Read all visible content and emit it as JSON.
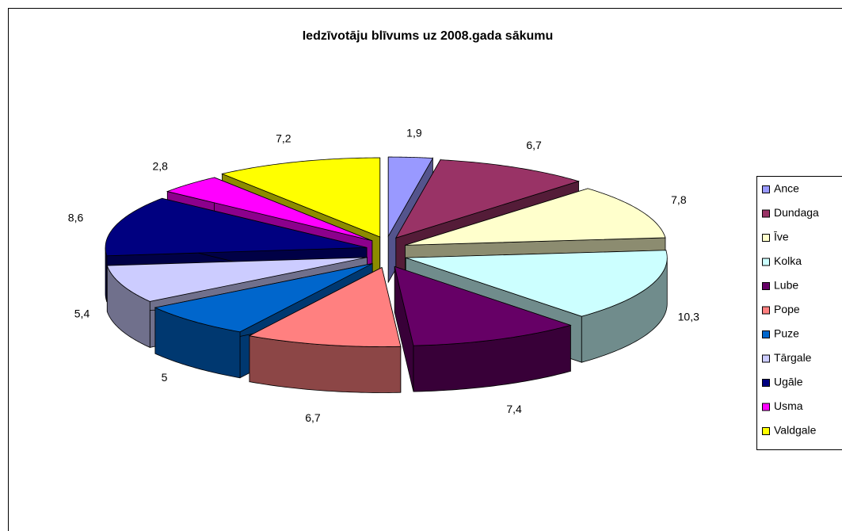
{
  "chart_data": {
    "type": "pie",
    "title": "Iedzīvotāju blīvums uz 2008.gada sākumu",
    "categories": [
      "Ance",
      "Dundaga",
      "Īve",
      "Kolka",
      "Lube",
      "Pope",
      "Puze",
      "Tārgale",
      "Ugāle",
      "Usma",
      "Valdgale"
    ],
    "values": [
      1.9,
      6.7,
      7.8,
      10.3,
      7.4,
      6.7,
      5,
      5.4,
      8.6,
      2.8,
      7.2
    ],
    "value_labels": [
      "1,9",
      "6,7",
      "7,8",
      "10,3",
      "7,4",
      "6,7",
      "5",
      "5,4",
      "8,6",
      "2,8",
      "7,2"
    ],
    "colors": [
      "#9999ff",
      "#993366",
      "#ffffcc",
      "#ccffff",
      "#660066",
      "#ff8080",
      "#0066cc",
      "#ccccff",
      "#000080",
      "#ff00ff",
      "#ffff00"
    ],
    "legend": "right"
  }
}
